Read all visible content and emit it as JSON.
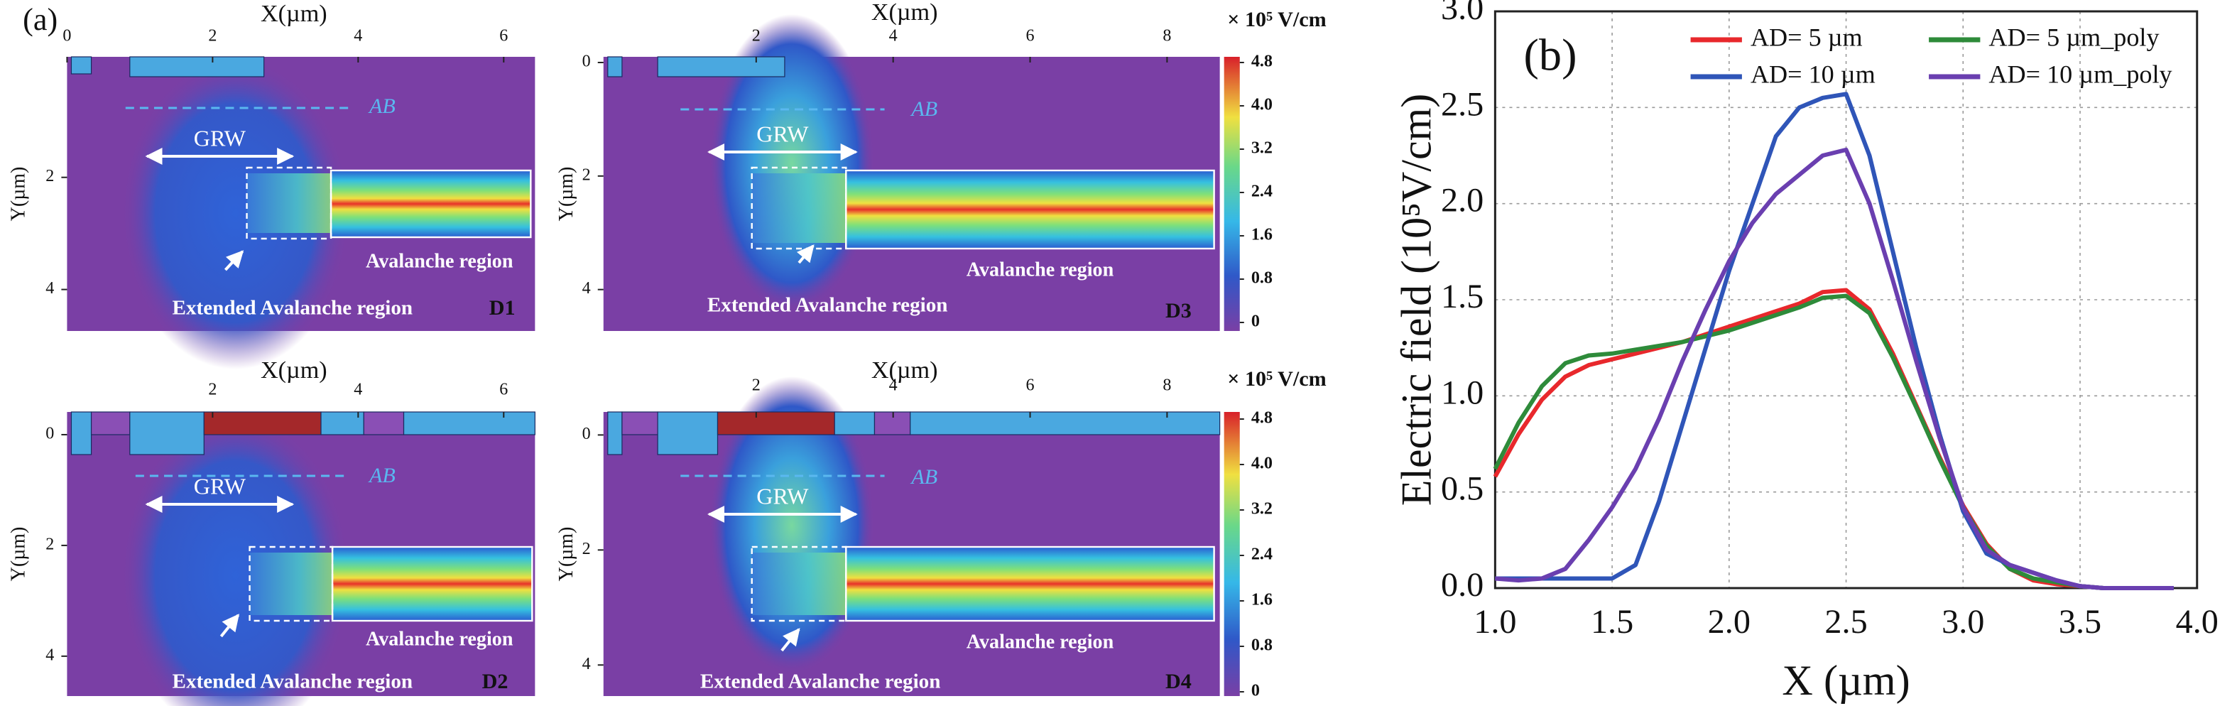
{
  "panel_labels": [
    "(a)",
    "(b)"
  ],
  "chart_data": [
    {
      "type": "contour",
      "label": "D1",
      "xlabel": "X(µm)",
      "ylabel": "Y(µm)",
      "xlim": [
        0,
        6.43
      ],
      "ylim": [
        -0.15,
        4.74
      ],
      "xticks": [
        0,
        2,
        4,
        6
      ],
      "yticks": [
        2,
        4
      ],
      "annotations": {
        "grw": "GRW",
        "ab": "AB",
        "avalanche": "Avalanche region",
        "extended": "Extended Avalanche region"
      }
    },
    {
      "type": "contour",
      "label": "D2",
      "xlabel": "X(µm)",
      "ylabel": "Y(µm)",
      "xlim": [
        0,
        6.43
      ],
      "ylim": [
        -0.41,
        4.72
      ],
      "xticks": [
        2,
        4,
        6
      ],
      "yticks": [
        0,
        2,
        4
      ],
      "annotations": {
        "grw": "GRW",
        "ab": "AB",
        "avalanche": "Avalanche region",
        "extended": "Extended Avalanche region"
      }
    },
    {
      "type": "contour",
      "label": "D3",
      "xlabel": "X(µm)",
      "ylabel": "Y(µm)",
      "xlim": [
        -0.23,
        8.77
      ],
      "ylim": [
        -0.1,
        4.73
      ],
      "xticks": [
        2,
        4,
        6,
        8
      ],
      "yticks": [
        0,
        2,
        4
      ],
      "annotations": {
        "grw": "GRW",
        "ab": "AB",
        "avalanche": "Avalanche region",
        "extended": "Extended Avalanche region"
      },
      "colorbar": {
        "title": "× 10⁵ V/cm",
        "lim": [
          0,
          4.8
        ],
        "ticks": [
          4.8,
          {
            "value": 4,
            "label": "4.0"
          },
          3.2,
          2.4,
          1.6,
          0.8,
          0
        ]
      }
    },
    {
      "type": "contour",
      "label": "D4",
      "xlabel": "X(µm)",
      "ylabel": "Y(µm)",
      "xlim": [
        -0.23,
        8.77
      ],
      "ylim": [
        -0.4,
        4.54
      ],
      "xticks": [
        2,
        4,
        6,
        8
      ],
      "yticks": [
        0,
        2,
        4
      ],
      "annotations": {
        "grw": "GRW",
        "ab": "AB",
        "avalanche": "Avalanche region",
        "extended": "Extended Avalanche region"
      },
      "colorbar": {
        "title": "× 10⁵ V/cm",
        "lim": [
          0,
          4.8
        ],
        "ticks": [
          4.8,
          {
            "value": 4,
            "label": "4.0"
          },
          3.2,
          2.4,
          1.6,
          0.8,
          0
        ]
      }
    },
    {
      "type": "line",
      "xlabel": "X (µm)",
      "ylabel": "Electric field (10⁵V/cm)",
      "xlim": [
        1.0,
        4.0
      ],
      "ylim": [
        0,
        3.0
      ],
      "grid": true,
      "legend": "top",
      "xticks": [
        {
          "value": 1,
          "label": "1.0"
        },
        1.5,
        {
          "value": 2,
          "label": "2.0"
        },
        2.5,
        {
          "value": 3,
          "label": "3.0"
        },
        3.5,
        {
          "value": 4,
          "label": "4.0"
        }
      ],
      "yticks": [
        {
          "value": 0,
          "label": "0.0"
        },
        0.5,
        {
          "value": 1,
          "label": "1.0"
        },
        1.5,
        {
          "value": 2,
          "label": "2.0"
        },
        2.5,
        {
          "value": 3,
          "label": "3.0"
        }
      ],
      "x": [
        1.0,
        1.1,
        1.2,
        1.3,
        1.4,
        1.5,
        1.6,
        1.7,
        1.8,
        1.9,
        2.0,
        2.1,
        2.2,
        2.3,
        2.4,
        2.5,
        2.6,
        2.7,
        2.8,
        2.9,
        3.0,
        3.1,
        3.2,
        3.3,
        3.4,
        3.5,
        3.6,
        3.7,
        3.8,
        3.9
      ],
      "series": [
        {
          "name": "AD= 5 µm",
          "color": "#e8282c",
          "values": [
            0.58,
            0.8,
            0.98,
            1.1,
            1.16,
            1.19,
            1.22,
            1.25,
            1.28,
            1.32,
            1.36,
            1.4,
            1.44,
            1.48,
            1.54,
            1.55,
            1.45,
            1.22,
            0.95,
            0.68,
            0.43,
            0.23,
            0.1,
            0.04,
            0.02,
            0.01,
            0,
            0,
            0,
            0
          ]
        },
        {
          "name": "AD= 5 µm_poly",
          "color": "#2e8b3a",
          "values": [
            0.62,
            0.86,
            1.05,
            1.17,
            1.21,
            1.22,
            1.24,
            1.26,
            1.28,
            1.31,
            1.34,
            1.38,
            1.42,
            1.46,
            1.51,
            1.52,
            1.43,
            1.2,
            0.94,
            0.67,
            0.42,
            0.22,
            0.1,
            0.05,
            0.03,
            0.01,
            0,
            0,
            0,
            0
          ]
        },
        {
          "name": "AD= 10 µm",
          "color": "#2f55b8",
          "values": [
            0.05,
            0.05,
            0.05,
            0.05,
            0.05,
            0.05,
            0.12,
            0.45,
            0.85,
            1.25,
            1.65,
            2.0,
            2.35,
            2.5,
            2.55,
            2.57,
            2.25,
            1.75,
            1.25,
            0.8,
            0.4,
            0.18,
            0.12,
            0.08,
            0.04,
            0.01,
            0,
            0,
            0,
            0
          ]
        },
        {
          "name": "AD= 10 µm_poly",
          "color": "#6a3fb0",
          "values": [
            0.05,
            0.04,
            0.05,
            0.1,
            0.25,
            0.42,
            0.62,
            0.88,
            1.18,
            1.45,
            1.7,
            1.9,
            2.05,
            2.15,
            2.25,
            2.28,
            2.0,
            1.6,
            1.18,
            0.78,
            0.42,
            0.2,
            0.12,
            0.08,
            0.04,
            0.01,
            0,
            0,
            0,
            0
          ]
        }
      ]
    }
  ]
}
